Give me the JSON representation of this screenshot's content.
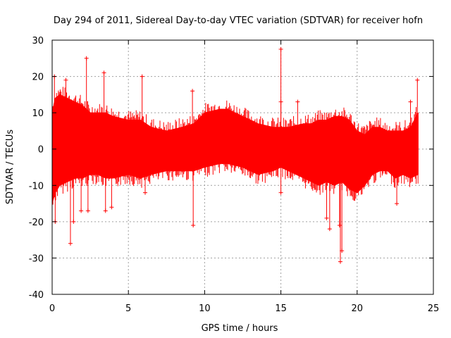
{
  "chart_data": {
    "type": "scatter",
    "title": "Day 294 of 2011, Sidereal Day-to-day VTEC variation (SDTVAR) for receiver hofn",
    "xlabel": "GPS time / hours",
    "ylabel": "SDTVAR / TECUs",
    "xlim": [
      0,
      25
    ],
    "ylim": [
      -40,
      30
    ],
    "xticks": [
      "0",
      "5",
      "10",
      "15",
      "20",
      "25"
    ],
    "yticks": [
      "30",
      "20",
      "10",
      "0",
      "-10",
      "-20",
      "-30",
      "-40"
    ],
    "grid": true,
    "color": "#ff0000",
    "marker": "plus-with-errorbars",
    "envelope": {
      "x": [
        0.0,
        0.2,
        0.5,
        1.0,
        1.5,
        2.0,
        2.5,
        3.0,
        3.5,
        4.0,
        5.0,
        5.8,
        6.5,
        7.5,
        8.5,
        9.3,
        10.0,
        11.0,
        11.5,
        12.5,
        13.5,
        14.5,
        15.0,
        15.5,
        16.5,
        17.0,
        17.5,
        18.0,
        18.5,
        19.0,
        19.5,
        20.0,
        20.5,
        21.0,
        21.5,
        22.0,
        22.5,
        23.0,
        23.5,
        24.0
      ],
      "upper": [
        10,
        14,
        15,
        14,
        13,
        12,
        10,
        10,
        10,
        9,
        8,
        8,
        6,
        5,
        6,
        7,
        10,
        11,
        11,
        9,
        7,
        6,
        6,
        6,
        7,
        7,
        8,
        8,
        9,
        9,
        8,
        5,
        4,
        6,
        6,
        5,
        5,
        5,
        6,
        10
      ],
      "lower": [
        -15,
        -12,
        -10,
        -9,
        -8,
        -8,
        -7,
        -7,
        -8,
        -8,
        -7,
        -8,
        -7,
        -6,
        -6,
        -6,
        -5,
        -4,
        -4,
        -5,
        -7,
        -6,
        -5,
        -6,
        -8,
        -9,
        -10,
        -9,
        -10,
        -9,
        -11,
        -12,
        -10,
        -7,
        -6,
        -6,
        -8,
        -7,
        -8,
        -7
      ]
    },
    "spikes": [
      {
        "x": 0.15,
        "y": 20
      },
      {
        "x": 0.2,
        "y": -20
      },
      {
        "x": 0.9,
        "y": 19
      },
      {
        "x": 1.2,
        "y": -26
      },
      {
        "x": 1.4,
        "y": -20
      },
      {
        "x": 1.9,
        "y": -17
      },
      {
        "x": 2.25,
        "y": 25
      },
      {
        "x": 2.35,
        "y": -17
      },
      {
        "x": 3.4,
        "y": 21
      },
      {
        "x": 3.5,
        "y": -17
      },
      {
        "x": 3.9,
        "y": -16
      },
      {
        "x": 5.9,
        "y": 20
      },
      {
        "x": 6.1,
        "y": -12
      },
      {
        "x": 9.2,
        "y": 16
      },
      {
        "x": 9.25,
        "y": -21
      },
      {
        "x": 15.0,
        "y": 27.5
      },
      {
        "x": 15.0,
        "y": -12
      },
      {
        "x": 15.0,
        "y": 13
      },
      {
        "x": 16.1,
        "y": 13
      },
      {
        "x": 18.0,
        "y": -19
      },
      {
        "x": 18.2,
        "y": -22
      },
      {
        "x": 18.9,
        "y": -31
      },
      {
        "x": 19.0,
        "y": -28
      },
      {
        "x": 18.85,
        "y": -21
      },
      {
        "x": 22.6,
        "y": -15
      },
      {
        "x": 23.5,
        "y": 13
      },
      {
        "x": 23.95,
        "y": 19
      }
    ]
  }
}
